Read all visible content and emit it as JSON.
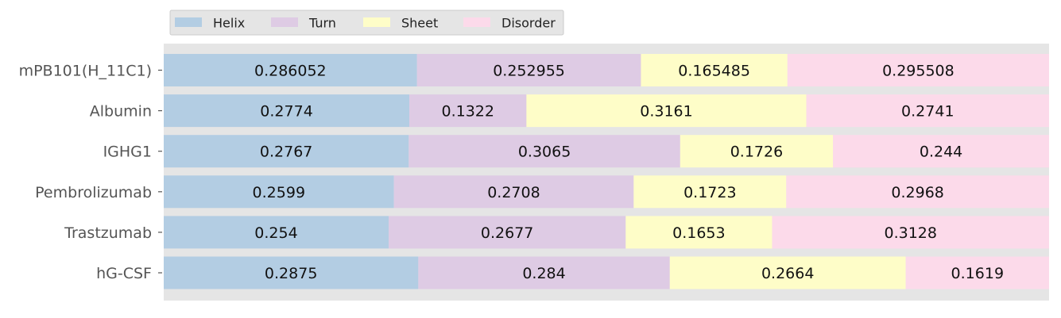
{
  "chart_data": {
    "type": "bar",
    "orientation": "horizontal",
    "stacked": true,
    "normalized": true,
    "categories": [
      "mPB101(H_11C1)",
      "Albumin",
      "IGHG1",
      "Pembrolizumab",
      "Trastzumab",
      "hG-CSF"
    ],
    "series": [
      {
        "name": "Helix",
        "color": "#b3cde3",
        "values": [
          0.286052,
          0.2774,
          0.2767,
          0.2599,
          0.254,
          0.2875
        ],
        "labels": [
          "0.286052",
          "0.2774",
          "0.2767",
          "0.2599",
          "0.254",
          "0.2875"
        ]
      },
      {
        "name": "Turn",
        "color": "#decbe4",
        "values": [
          0.252955,
          0.1322,
          0.3065,
          0.2708,
          0.2677,
          0.284
        ],
        "labels": [
          "0.252955",
          "0.1322",
          "0.3065",
          "0.2708",
          "0.2677",
          "0.284"
        ]
      },
      {
        "name": "Sheet",
        "color": "#fefdc8",
        "values": [
          0.165485,
          0.3161,
          0.1726,
          0.1723,
          0.1653,
          0.2664
        ],
        "labels": [
          "0.165485",
          "0.3161",
          "0.1726",
          "0.1723",
          "0.1653",
          "0.2664"
        ]
      },
      {
        "name": "Disorder",
        "color": "#fcdaea",
        "values": [
          0.295508,
          0.2741,
          0.244,
          0.2968,
          0.3128,
          0.1619
        ],
        "labels": [
          "0.295508",
          "0.2741",
          "0.244",
          "0.2968",
          "0.3128",
          "0.1619"
        ]
      }
    ],
    "xlim": [
      0,
      1
    ],
    "grid": false,
    "legend_position": "top-left",
    "title": "",
    "xlabel": "",
    "ylabel": ""
  }
}
